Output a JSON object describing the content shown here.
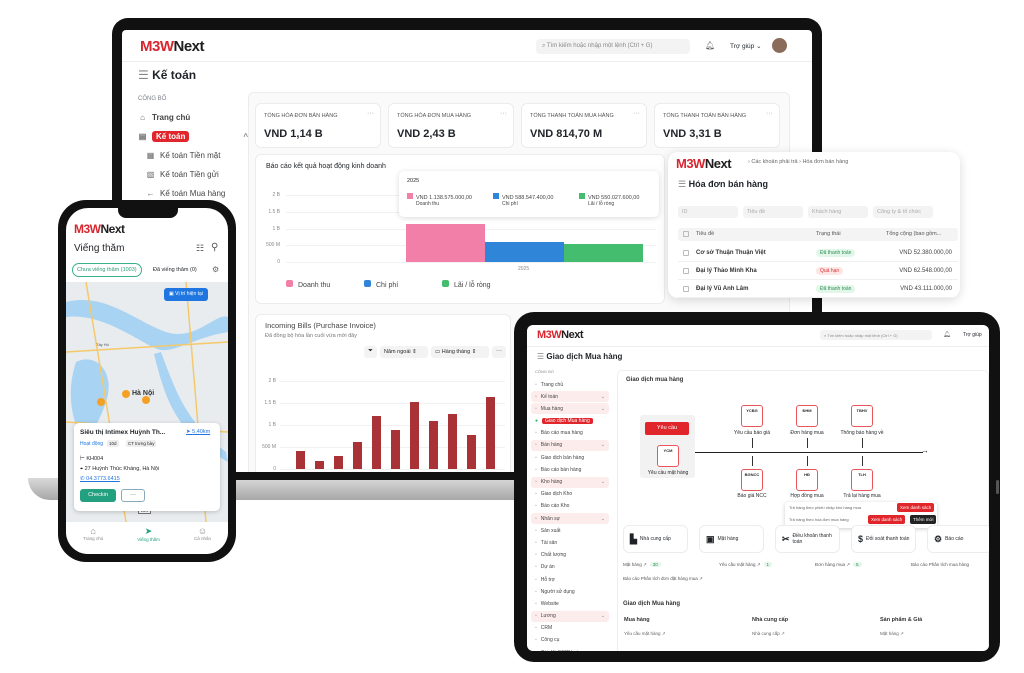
{
  "brand": {
    "logo_m": "M3W",
    "logo_n": "Next",
    "accent": "#e0252b"
  },
  "laptop": {
    "search_placeholder": "Tìm kiếm hoặc nhập một lệnh (Ctrl + G)",
    "help": "Trợ giúp",
    "page_title": "Kế toán",
    "sidebar": {
      "section": "CÔNG BỐ",
      "items": [
        {
          "label": "Trang chủ",
          "icon": "home-icon"
        },
        {
          "label": "Kế toán",
          "icon": "accounting-icon",
          "active": true
        },
        {
          "label": "Kế toán Tiền mặt",
          "icon": "cash-icon"
        },
        {
          "label": "Kế toán Tiền gửi",
          "icon": "deposit-icon"
        },
        {
          "label": "Kế toán Mua hàng",
          "icon": "arrow-left-icon"
        },
        {
          "label": "Kế toán Bán hàng",
          "icon": "arrow-right-icon"
        }
      ]
    },
    "kpis": [
      {
        "label": "TỔNG HÓA ĐƠN BÁN HÀNG",
        "value": "VND 1,14 B"
      },
      {
        "label": "TỔNG HÓA ĐƠN MUA HÀNG",
        "value": "VND 2,43 B"
      },
      {
        "label": "TỔNG THANH TOÁN MUA HÀNG",
        "value": "VND 814,70 M"
      },
      {
        "label": "TỔNG THANH TOÁN BÁN HÀNG",
        "value": "VND 3,31 B"
      }
    ],
    "business_chart": {
      "title": "Báo cáo kết quả hoạt động kinh doanh",
      "tooltip": {
        "year": "2025",
        "items": [
          {
            "value": "VND 1.138.575.000,00",
            "name": "Doanh thu"
          },
          {
            "value": "VND 588.547.400,00",
            "name": "Chi phí"
          },
          {
            "value": "VND 550.027.600,00",
            "name": "Lãi / lỗ ròng"
          }
        ]
      }
    },
    "bills_chart": {
      "title": "Incoming Bills (Purchase Invoice)",
      "subtitle": "Đã đồng bộ hóa lần cuối vừa mới đây",
      "filter_period": "Năm ngoái",
      "filter_interval": "Hàng tháng",
      "more": "···"
    }
  },
  "chart_data": [
    {
      "type": "bar",
      "title": "Báo cáo kết quả hoạt động kinh doanh",
      "categories": [
        "2025"
      ],
      "series": [
        {
          "name": "Doanh thu",
          "color": "#f27fa8",
          "values": [
            1138575000
          ]
        },
        {
          "name": "Chi phí",
          "color": "#2f86d9",
          "values": [
            588547400
          ]
        },
        {
          "name": "Lãi / lỗ ròng",
          "color": "#45bd6f",
          "values": [
            550027600
          ]
        }
      ],
      "yticks": [
        "0",
        "500 M",
        "1 B",
        "1.5 B",
        "2 B"
      ],
      "ylim": [
        0,
        2000000000
      ],
      "legend": "bottom",
      "grid": true
    },
    {
      "type": "bar",
      "title": "Incoming Bills (Purchase Invoice)",
      "color": "#a83236",
      "values": [
        420000000,
        180000000,
        300000000,
        620000000,
        1200000000,
        880000000,
        1530000000,
        1090000000,
        1240000000,
        770000000,
        1630000000
      ],
      "yticks": [
        "0",
        "500 M",
        "1 B",
        "1.5 B",
        "2 B"
      ],
      "ylim": [
        0,
        2000000000
      ],
      "grid": true
    }
  ],
  "invoice_panel": {
    "breadcrumb": [
      "Các khoản phải trả",
      "Hóa đơn bán hàng"
    ],
    "title": "Hóa đơn bán hàng",
    "filters": [
      "ID",
      "Tiêu đề",
      "Khách hàng",
      "Công ty & tổ chức"
    ],
    "columns": [
      "Tiêu đề",
      "Trạng thái",
      "Tổng cộng (bao gồm..."
    ],
    "rows": [
      {
        "title": "Cơ sở Thuận Thuận Việt",
        "status": "Đã thanh toán",
        "status_type": "paid",
        "total": "VND 52.380.000,00"
      },
      {
        "title": "Đại lý Thảo Minh Kha",
        "status": "Quá hạn",
        "status_type": "overdue",
        "total": "VND 62.548.000,00"
      },
      {
        "title": "Đại lý Vũ Anh Lâm",
        "status": "Đã thanh toán",
        "status_type": "paid",
        "total": "VND 43.111.000,00"
      }
    ]
  },
  "phone": {
    "title": "Viếng thăm",
    "tab_unvisited": "Chưa viếng thăm (1003)",
    "tab_visited": "Đã viếng thăm (0)",
    "current_location": "Vị trí hiện tại",
    "map_labels": [
      "Hà Nội",
      "Tây Hồ",
      "BL1"
    ],
    "store": {
      "name": "Siêu thị Intimex Huỳnh Th...",
      "distance": "5,40km",
      "status": "Hoạt động",
      "tag1": "10d",
      "tag2": "CT trưng bày",
      "code": "KH004",
      "address": "27 Huỳnh Thúc Kháng, Hà Nội",
      "phone": "04.3773.6415"
    },
    "checkin": "Checkin",
    "more": "···",
    "nav": [
      {
        "label": "Trang chủ",
        "icon": "home-icon"
      },
      {
        "label": "Viếng thăm",
        "icon": "send-icon",
        "active": true
      },
      {
        "label": "Cá nhân",
        "icon": "user-icon"
      }
    ]
  },
  "tablet": {
    "search_placeholder": "Tìm kiếm hoặc nhập một lệnh (Ctrl + G)",
    "help": "Trợ giúp",
    "page_title": "Giao dịch Mua hàng",
    "sidebar": {
      "section": "CÔNG BỐ",
      "items": [
        {
          "label": "Trang chủ",
          "type": "item"
        },
        {
          "label": "Kế toán",
          "type": "group"
        },
        {
          "label": "Mua hàng",
          "type": "group"
        },
        {
          "label": "Giao dịch Mua hàng",
          "type": "active"
        },
        {
          "label": "Báo cáo mua hàng",
          "type": "sub"
        },
        {
          "label": "Bán hàng",
          "type": "group"
        },
        {
          "label": "Giao dịch bán hàng",
          "type": "sub"
        },
        {
          "label": "Báo cáo bán hàng",
          "type": "sub"
        },
        {
          "label": "Kho hàng",
          "type": "group"
        },
        {
          "label": "Giao dịch Kho",
          "type": "sub"
        },
        {
          "label": "Báo cáo Kho",
          "type": "sub"
        },
        {
          "label": "Nhân sự",
          "type": "group"
        },
        {
          "label": "Sản xuất",
          "type": "item"
        },
        {
          "label": "Tài sản",
          "type": "item"
        },
        {
          "label": "Chất lượng",
          "type": "item"
        },
        {
          "label": "Dự án",
          "type": "item"
        },
        {
          "label": "Hỗ trợ",
          "type": "item"
        },
        {
          "label": "Người sử dụng",
          "type": "item"
        },
        {
          "label": "Website",
          "type": "item"
        },
        {
          "label": "Lương",
          "type": "group"
        },
        {
          "label": "CRM",
          "type": "item"
        },
        {
          "label": "Công cụ",
          "type": "item"
        },
        {
          "label": "Cài đặt ERPNext",
          "type": "item"
        },
        {
          "label": "Tích hợp",
          "type": "item"
        }
      ]
    },
    "section_title": "Giao dịch mua hàng",
    "flow": {
      "request_button": "Yêu cầu",
      "start": {
        "code": "YCM",
        "label": "Yêu cầu mặt hàng"
      },
      "top": [
        {
          "code": "YCBG",
          "label": "Yêu cầu báo giá"
        },
        {
          "code": "ĐHM",
          "label": "Đơn hàng mua"
        },
        {
          "code": "TBHV",
          "label": "Thông báo hàng về"
        }
      ],
      "bottom": [
        {
          "code": "BGNCC",
          "label": "Báo giá NCC"
        },
        {
          "code": "HĐ",
          "label": "Hợp đồng mua"
        },
        {
          "code": "TLH",
          "label": "Trả lại hàng mua"
        }
      ],
      "popup": [
        {
          "text": "Trả hàng theo phiếu nhập kho hàng mua",
          "btn": "Xem danh sách"
        },
        {
          "text": "Trả hàng theo hóa đơn mua hàng",
          "btn": "Xem danh sách",
          "btn2": "Thêm mới"
        }
      ]
    },
    "shortcuts": [
      "Nhà cung cấp",
      "Mặt hàng",
      "Điều khoản thanh toán",
      "Đối soát thanh toán",
      "Báo cáo"
    ],
    "links": [
      {
        "label": "Mặt hàng ↗",
        "count": "30"
      },
      {
        "label": "Yêu cầu mặt hàng ↗",
        "count": "1"
      },
      {
        "label": "Đơn hàng mua ↗",
        "count": "5"
      },
      {
        "label": "Báo cáo Phân tích mua hàng"
      },
      {
        "label": "Báo cáo Phân tích đơn đặt hàng mua ↗"
      }
    ],
    "section2_title": "Giao dịch Mua hàng",
    "columns": [
      {
        "title": "Mua hàng",
        "item": "Yêu cầu mặt hàng ↗"
      },
      {
        "title": "Nhà cung cấp",
        "item": "Nhà cung cấp ↗"
      },
      {
        "title": "Sản phẩm & Giá",
        "item": "Mặt hàng ↗"
      }
    ]
  }
}
